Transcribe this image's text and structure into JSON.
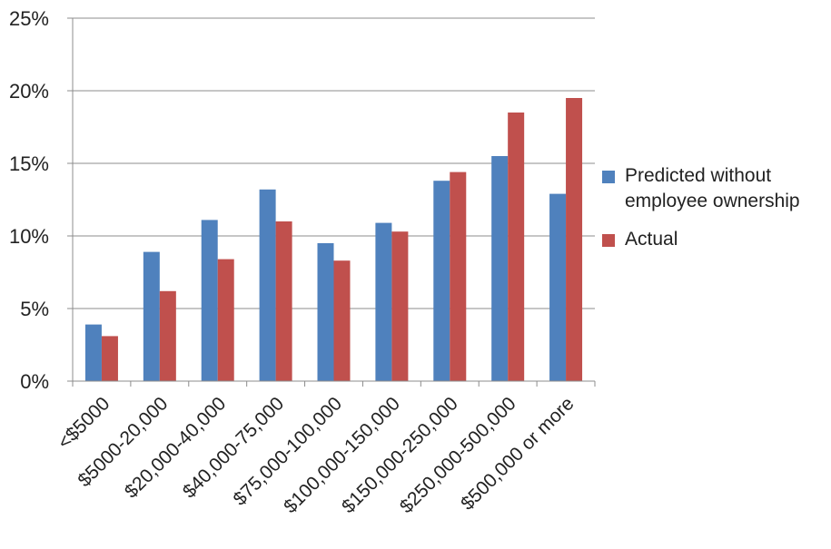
{
  "chart_data": {
    "type": "bar",
    "title": "",
    "xlabel": "",
    "ylabel": "",
    "ylim": [
      0,
      25
    ],
    "yticks": [
      "0%",
      "5%",
      "10%",
      "15%",
      "20%",
      "25%"
    ],
    "grid": true,
    "legend_position": "right",
    "categories": [
      "<$5000",
      "$5000-20,000",
      "$20,000-40,000",
      "$40,000-75,000",
      "$75,000-100,000",
      "$100,000-150,000",
      "$150,000-250,000",
      "$250,000-500,000",
      "$500,000 or more"
    ],
    "series": [
      {
        "name": "Predicted without employee ownership",
        "color": "#4F81BD",
        "values": [
          3.9,
          8.9,
          11.1,
          13.2,
          9.5,
          10.9,
          13.8,
          15.5,
          12.9
        ]
      },
      {
        "name": "Actual",
        "color": "#C0504D",
        "values": [
          3.1,
          6.2,
          8.4,
          11.0,
          8.3,
          10.3,
          14.4,
          18.5,
          19.5
        ]
      }
    ]
  }
}
